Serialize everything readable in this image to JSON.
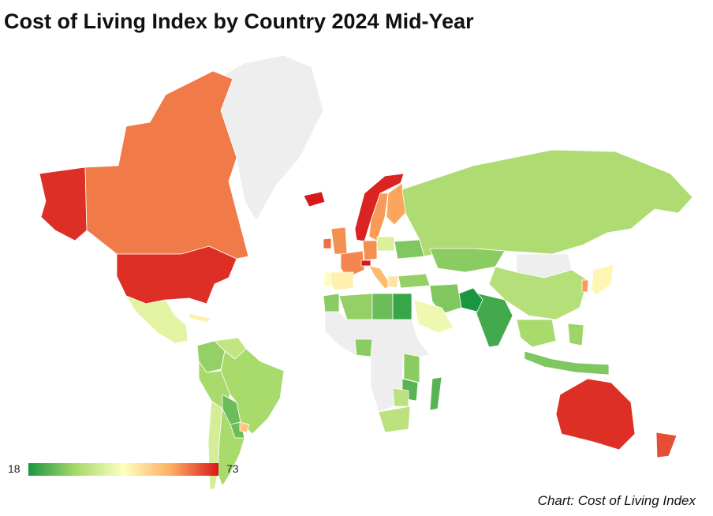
{
  "title": "Cost of Living Index by Country 2024 Mid-Year",
  "credit": "Chart: Cost of Living Index",
  "legend": {
    "min_label": "18",
    "max_label": "73",
    "min": 18,
    "max": 73,
    "colors": [
      "#1a9641",
      "#a6d96a",
      "#ffffbf",
      "#fdae61",
      "#d7191c"
    ]
  },
  "no_data_color": "#eeeeee",
  "countries": [
    {
      "name": "Alaska (United States)",
      "value": 71
    },
    {
      "name": "Canada",
      "value": 64
    },
    {
      "name": "United States",
      "value": 71
    },
    {
      "name": "Mexico",
      "value": 41
    },
    {
      "name": "Cuba",
      "value": 48
    },
    {
      "name": "Colombia",
      "value": 30
    },
    {
      "name": "Venezuela",
      "value": 36
    },
    {
      "name": "Peru",
      "value": 32
    },
    {
      "name": "Brazil",
      "value": 32
    },
    {
      "name": "Bolivia",
      "value": 26
    },
    {
      "name": "Paraguay",
      "value": 26
    },
    {
      "name": "Chile",
      "value": 39
    },
    {
      "name": "Argentina",
      "value": 32
    },
    {
      "name": "Uruguay",
      "value": 55
    },
    {
      "name": "Iceland",
      "value": 73
    },
    {
      "name": "Norway",
      "value": 72
    },
    {
      "name": "Sweden",
      "value": 61
    },
    {
      "name": "Finland",
      "value": 60
    },
    {
      "name": "United Kingdom",
      "value": 62
    },
    {
      "name": "Ireland",
      "value": 65
    },
    {
      "name": "France",
      "value": 63
    },
    {
      "name": "Spain",
      "value": 48
    },
    {
      "name": "Portugal",
      "value": 45
    },
    {
      "name": "Germany",
      "value": 62
    },
    {
      "name": "Switzerland",
      "value": 73
    },
    {
      "name": "Italy",
      "value": 57
    },
    {
      "name": "Poland",
      "value": 40
    },
    {
      "name": "Ukraine",
      "value": 28
    },
    {
      "name": "Greece",
      "value": 50
    },
    {
      "name": "Turkey",
      "value": 30
    },
    {
      "name": "Russia",
      "value": 33
    },
    {
      "name": "Kazakhstan",
      "value": 29
    },
    {
      "name": "Mongolia",
      "value": null
    },
    {
      "name": "China",
      "value": 34
    },
    {
      "name": "Japan",
      "value": 47
    },
    {
      "name": "South Korea",
      "value": 61
    },
    {
      "name": "India",
      "value": 22
    },
    {
      "name": "Pakistan",
      "value": 18
    },
    {
      "name": "Iran",
      "value": 28
    },
    {
      "name": "Saudi Arabia",
      "value": 43
    },
    {
      "name": "Algeria",
      "value": 30
    },
    {
      "name": "Libya",
      "value": 26
    },
    {
      "name": "Egypt",
      "value": 21
    },
    {
      "name": "Morocco",
      "value": 29
    },
    {
      "name": "Nigeria",
      "value": 29
    },
    {
      "name": "Kenya",
      "value": 29
    },
    {
      "name": "Tanzania",
      "value": 24
    },
    {
      "name": "South Africa",
      "value": 35
    },
    {
      "name": "Zimbabwe",
      "value": 35
    },
    {
      "name": "Madagascar",
      "value": 24
    },
    {
      "name": "Southeast Asia",
      "value": 32
    },
    {
      "name": "Indonesia",
      "value": 28
    },
    {
      "name": "Philippines",
      "value": 31
    },
    {
      "name": "Australia",
      "value": 71
    },
    {
      "name": "New Zealand",
      "value": 68
    },
    {
      "name": "Greenland",
      "value": null
    },
    {
      "name": "Africa (other)",
      "value": null
    }
  ]
}
